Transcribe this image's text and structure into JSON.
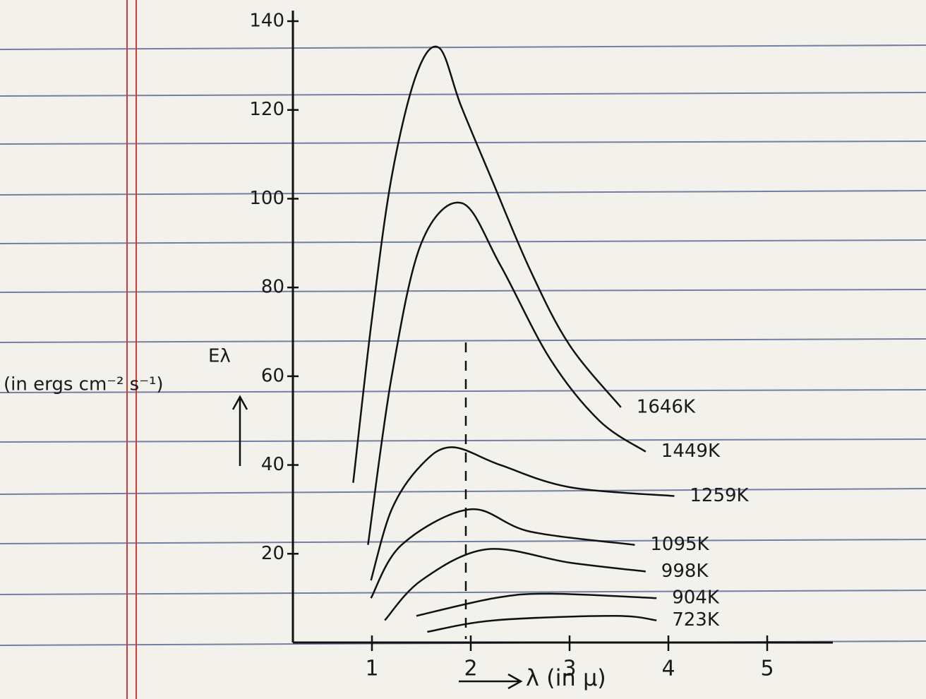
{
  "chart_data": {
    "type": "line",
    "y_label": "(in ergs cm⁻² s⁻¹)",
    "y_symbol": "Eλ",
    "x_label": "λ (in μ)",
    "xlim": [
      0.2,
      5.6
    ],
    "xticks": [
      1,
      2,
      3,
      4,
      5
    ],
    "ylim": [
      0,
      140
    ],
    "yticks": [
      20,
      40,
      60,
      80,
      100,
      120,
      140
    ],
    "series": [
      {
        "name": "1646K",
        "color": "#111111",
        "x": [
          0.81,
          1.0,
          1.2,
          1.45,
          1.68,
          1.9,
          2.2,
          2.6,
          3.0,
          3.52
        ],
        "values": [
          36,
          73,
          105,
          128,
          134,
          121,
          105,
          84,
          67,
          53
        ]
      },
      {
        "name": "1449K",
        "color": "#111111",
        "x": [
          0.96,
          1.2,
          1.5,
          1.91,
          2.3,
          2.8,
          3.3,
          3.77
        ],
        "values": [
          22,
          60,
          90,
          99,
          85,
          64,
          50,
          43
        ]
      },
      {
        "name": "1259K",
        "color": "#111111",
        "x": [
          0.99,
          1.2,
          1.5,
          1.81,
          2.3,
          3.0,
          4.06
        ],
        "values": [
          14,
          30,
          40,
          44,
          40,
          35,
          33
        ]
      },
      {
        "name": "1095K",
        "color": "#111111",
        "x": [
          0.99,
          1.3,
          1.99,
          2.6,
          3.66
        ],
        "values": [
          10,
          22,
          30,
          25,
          22
        ]
      },
      {
        "name": "998K",
        "color": "#111111",
        "x": [
          1.13,
          1.5,
          2.16,
          3.0,
          3.77
        ],
        "values": [
          5,
          14,
          21,
          18,
          16
        ]
      },
      {
        "name": "904K",
        "color": "#111111",
        "x": [
          1.45,
          2.24,
          2.8,
          3.88
        ],
        "values": [
          6,
          10,
          11,
          10
        ]
      },
      {
        "name": "723K",
        "color": "#111111",
        "x": [
          1.56,
          2.24,
          3.45,
          3.88
        ],
        "values": [
          2.4,
          5,
          6,
          5
        ]
      }
    ]
  }
}
